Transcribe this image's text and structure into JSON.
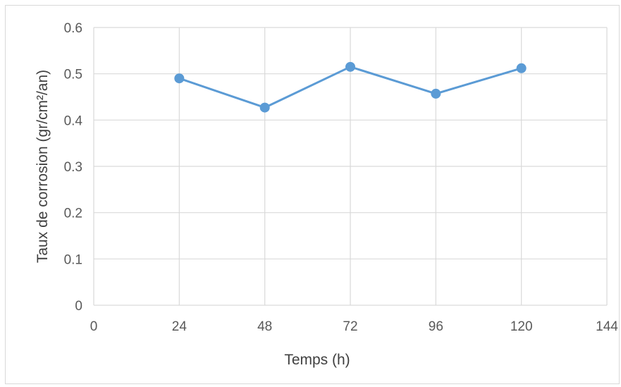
{
  "chart_data": {
    "type": "line",
    "x": [
      24,
      48,
      72,
      96,
      120
    ],
    "series": [
      {
        "values": [
          0.49,
          0.427,
          0.515,
          0.457,
          0.512
        ]
      }
    ],
    "xlabel": "Temps (h)",
    "ylabel": "Taux de corrosion (gr/cm²/an)",
    "xlim": [
      0,
      144
    ],
    "ylim": [
      0,
      0.6
    ],
    "x_ticks": [
      "0",
      "24",
      "48",
      "72",
      "96",
      "120",
      "144"
    ],
    "y_ticks": [
      "0",
      "0.1",
      "0.2",
      "0.3",
      "0.4",
      "0.5",
      "0.6"
    ],
    "grid": true,
    "legend": "none",
    "colors": {
      "line": "#5b9bd5",
      "grid": "#d9d9d9",
      "text": "#595959"
    }
  }
}
